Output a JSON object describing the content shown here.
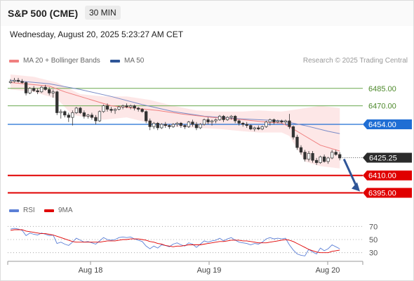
{
  "header": {
    "title": "S&P 500 (CME)",
    "timeframe": "30 MIN"
  },
  "datetime": "Wednesday, August 20, 2025 5:23:27 AM CET",
  "legend": {
    "items": [
      {
        "label": "MA 20 + Bollinger Bands",
        "color": "#f08080"
      },
      {
        "label": "MA 50",
        "color": "#2f5597"
      }
    ],
    "research": "Research © 2025 Trading Central"
  },
  "rsi_legend": {
    "items": [
      {
        "label": "RSI",
        "color": "#5b7fd6"
      },
      {
        "label": "9MA",
        "color": "#e00000"
      }
    ]
  },
  "chart_data": [
    {
      "type": "line",
      "subtype": "candlestick",
      "x_labels": [
        "Aug 18",
        "Aug 19",
        "Aug 20"
      ],
      "ylim": [
        6385,
        6500
      ],
      "grid": false,
      "last_price": {
        "value": 6425.25,
        "label": "6425.25"
      },
      "levels": [
        {
          "label": "6485.00",
          "value": 6485.0,
          "kind": "resistance",
          "color": "#6aa84f"
        },
        {
          "label": "6470.00",
          "value": 6470.0,
          "kind": "resistance",
          "color": "#6aa84f"
        },
        {
          "label": "6454.00",
          "value": 6454.0,
          "kind": "pivot",
          "color": "#1f6ed4"
        },
        {
          "label": "6410.00",
          "value": 6410.0,
          "kind": "support",
          "color": "#e00000"
        },
        {
          "label": "6395.00",
          "value": 6395.0,
          "kind": "support",
          "color": "#e00000"
        }
      ],
      "candles": [
        [
          6490,
          6493,
          6489,
          6491
        ],
        [
          6491,
          6494,
          6490,
          6492
        ],
        [
          6492,
          6494,
          6490,
          6491
        ],
        [
          6491,
          6493,
          6489,
          6490
        ],
        [
          6490,
          6491,
          6479,
          6481
        ],
        [
          6481,
          6486,
          6480,
          6485
        ],
        [
          6485,
          6487,
          6482,
          6483
        ],
        [
          6483,
          6485,
          6480,
          6482
        ],
        [
          6482,
          6487,
          6481,
          6486
        ],
        [
          6486,
          6488,
          6483,
          6484
        ],
        [
          6484,
          6486,
          6479,
          6481
        ],
        [
          6481,
          6484,
          6477,
          6482
        ],
        [
          6482,
          6483,
          6462,
          6464
        ],
        [
          6464,
          6467,
          6459,
          6465
        ],
        [
          6465,
          6466,
          6460,
          6462
        ],
        [
          6462,
          6464,
          6456,
          6460
        ],
        [
          6460,
          6466,
          6453,
          6464
        ],
        [
          6464,
          6469,
          6463,
          6468
        ],
        [
          6468,
          6469,
          6463,
          6464
        ],
        [
          6464,
          6466,
          6459,
          6461
        ],
        [
          6461,
          6463,
          6459,
          6462
        ],
        [
          6462,
          6464,
          6458,
          6460
        ],
        [
          6460,
          6462,
          6454,
          6457
        ],
        [
          6457,
          6466,
          6456,
          6465
        ],
        [
          6465,
          6471,
          6464,
          6470
        ],
        [
          6470,
          6472,
          6465,
          6467
        ],
        [
          6467,
          6469,
          6464,
          6466
        ],
        [
          6466,
          6468,
          6463,
          6467
        ],
        [
          6467,
          6470,
          6466,
          6469
        ],
        [
          6469,
          6471,
          6467,
          6470
        ],
        [
          6470,
          6472,
          6468,
          6469
        ],
        [
          6469,
          6471,
          6467,
          6470
        ],
        [
          6470,
          6471,
          6466,
          6468
        ],
        [
          6468,
          6469,
          6465,
          6467
        ],
        [
          6467,
          6468,
          6464,
          6465
        ],
        [
          6465,
          6466,
          6455,
          6457
        ],
        [
          6457,
          6459,
          6449,
          6452
        ],
        [
          6452,
          6456,
          6450,
          6455
        ],
        [
          6455,
          6456,
          6449,
          6451
        ],
        [
          6451,
          6455,
          6450,
          6454
        ],
        [
          6454,
          6456,
          6451,
          6453
        ],
        [
          6453,
          6454,
          6450,
          6452
        ],
        [
          6452,
          6455,
          6451,
          6454
        ],
        [
          6454,
          6456,
          6452,
          6455
        ],
        [
          6455,
          6456,
          6451,
          6453
        ],
        [
          6453,
          6454,
          6450,
          6452
        ],
        [
          6452,
          6457,
          6451,
          6456
        ],
        [
          6456,
          6458,
          6452,
          6454
        ],
        [
          6454,
          6456,
          6449,
          6451
        ],
        [
          6451,
          6455,
          6450,
          6454
        ],
        [
          6454,
          6459,
          6453,
          6458
        ],
        [
          6458,
          6460,
          6454,
          6456
        ],
        [
          6456,
          6458,
          6453,
          6457
        ],
        [
          6457,
          6459,
          6455,
          6458
        ],
        [
          6458,
          6462,
          6457,
          6461
        ],
        [
          6461,
          6462,
          6456,
          6458
        ],
        [
          6458,
          6461,
          6457,
          6460
        ],
        [
          6460,
          6462,
          6458,
          6461
        ],
        [
          6461,
          6462,
          6455,
          6457
        ],
        [
          6457,
          6458,
          6453,
          6455
        ],
        [
          6455,
          6456,
          6452,
          6454
        ],
        [
          6454,
          6456,
          6451,
          6453
        ],
        [
          6453,
          6454,
          6449,
          6450
        ],
        [
          6450,
          6452,
          6448,
          6451
        ],
        [
          6451,
          6453,
          6449,
          6450
        ],
        [
          6450,
          6453,
          6449,
          6452
        ],
        [
          6452,
          6457,
          6451,
          6456
        ],
        [
          6456,
          6459,
          6453,
          6458
        ],
        [
          6458,
          6459,
          6454,
          6456
        ],
        [
          6456,
          6458,
          6455,
          6457
        ],
        [
          6457,
          6458,
          6455,
          6456
        ],
        [
          6456,
          6458,
          6454,
          6457
        ],
        [
          6457,
          6463,
          6450,
          6452
        ],
        [
          6452,
          6453,
          6441,
          6443
        ],
        [
          6443,
          6445,
          6432,
          6434
        ],
        [
          6434,
          6436,
          6428,
          6430
        ],
        [
          6430,
          6432,
          6422,
          6424
        ],
        [
          6424,
          6431,
          6422,
          6429
        ],
        [
          6429,
          6431,
          6421,
          6423
        ],
        [
          6423,
          6425,
          6419,
          6421
        ],
        [
          6421,
          6427,
          6420,
          6426
        ],
        [
          6426,
          6428,
          6421,
          6422
        ],
        [
          6422,
          6426,
          6420,
          6425
        ],
        [
          6425,
          6432,
          6424,
          6430
        ],
        [
          6430,
          6432,
          6427,
          6428
        ],
        [
          6428,
          6430,
          6423,
          6425
        ]
      ],
      "ma20": [
        [
          0,
          6490
        ],
        [
          10,
          6487
        ],
        [
          14,
          6482
        ],
        [
          20,
          6476
        ],
        [
          26,
          6470
        ],
        [
          32,
          6468
        ],
        [
          38,
          6466
        ],
        [
          44,
          6463
        ],
        [
          52,
          6460
        ],
        [
          60,
          6458
        ],
        [
          66,
          6456
        ],
        [
          70,
          6455
        ],
        [
          72,
          6452
        ],
        [
          76,
          6444
        ],
        [
          80,
          6436
        ],
        [
          85,
          6431
        ]
      ],
      "ma50": [
        [
          0,
          6492
        ],
        [
          10,
          6489
        ],
        [
          18,
          6484
        ],
        [
          26,
          6478
        ],
        [
          34,
          6471
        ],
        [
          42,
          6465
        ],
        [
          50,
          6461
        ],
        [
          58,
          6459
        ],
        [
          64,
          6458
        ],
        [
          70,
          6457
        ],
        [
          76,
          6453
        ],
        [
          82,
          6448
        ],
        [
          85,
          6446
        ]
      ],
      "bb_upper": [
        [
          0,
          6497
        ],
        [
          6,
          6495
        ],
        [
          12,
          6490
        ],
        [
          18,
          6480
        ],
        [
          24,
          6478
        ],
        [
          30,
          6478
        ],
        [
          36,
          6475
        ],
        [
          42,
          6470
        ],
        [
          48,
          6466
        ],
        [
          54,
          6465
        ],
        [
          60,
          6465
        ],
        [
          64,
          6466
        ],
        [
          70,
          6465
        ],
        [
          72,
          6466
        ],
        [
          76,
          6468
        ],
        [
          80,
          6470
        ],
        [
          85,
          6468
        ]
      ],
      "bb_lower": [
        [
          0,
          6484
        ],
        [
          6,
          6482
        ],
        [
          12,
          6476
        ],
        [
          16,
          6462
        ],
        [
          24,
          6458
        ],
        [
          30,
          6460
        ],
        [
          36,
          6455
        ],
        [
          40,
          6452
        ],
        [
          48,
          6451
        ],
        [
          54,
          6450
        ],
        [
          60,
          6448
        ],
        [
          64,
          6447
        ],
        [
          70,
          6447
        ],
        [
          72,
          6444
        ],
        [
          76,
          6422
        ],
        [
          80,
          6418
        ],
        [
          85,
          6416
        ]
      ],
      "forecast_arrow": {
        "from_value": 6425.25,
        "to_value": 6395.0
      }
    },
    {
      "type": "line",
      "title": "",
      "ylim": [
        20,
        80
      ],
      "y_ticks": [
        70,
        50,
        30
      ],
      "series": [
        {
          "name": "RSI",
          "values": [
            66,
            67,
            66,
            64,
            56,
            60,
            58,
            57,
            60,
            58,
            56,
            57,
            44,
            46,
            43,
            41,
            46,
            52,
            49,
            46,
            47,
            45,
            43,
            48,
            53,
            50,
            49,
            50,
            53,
            54,
            53,
            54,
            51,
            49,
            47,
            40,
            36,
            40,
            37,
            42,
            41,
            39,
            43,
            45,
            42,
            40,
            45,
            43,
            38,
            43,
            48,
            46,
            48,
            49,
            52,
            48,
            51,
            53,
            49,
            46,
            45,
            44,
            42,
            44,
            43,
            46,
            51,
            53,
            51,
            52,
            51,
            52,
            42,
            34,
            28,
            26,
            25,
            35,
            31,
            28,
            37,
            33,
            36,
            42,
            39,
            36
          ]
        },
        {
          "name": "9MA",
          "values": [
            64,
            65,
            65,
            65,
            63,
            62,
            61,
            60,
            59,
            59,
            58,
            57,
            55,
            53,
            51,
            49,
            47,
            46,
            46,
            46,
            46,
            46,
            46,
            46,
            47,
            48,
            48,
            48,
            49,
            50,
            50,
            51,
            51,
            51,
            50,
            49,
            47,
            46,
            44,
            43,
            41,
            40,
            39,
            40,
            40,
            41,
            42,
            42,
            42,
            42,
            43,
            44,
            45,
            46,
            47,
            47,
            48,
            49,
            49,
            49,
            48,
            48,
            47,
            46,
            45,
            45,
            45,
            46,
            47,
            48,
            49,
            50,
            49,
            47,
            44,
            41,
            38,
            35,
            33,
            31,
            30,
            30,
            30,
            32,
            33,
            34
          ]
        }
      ]
    }
  ]
}
